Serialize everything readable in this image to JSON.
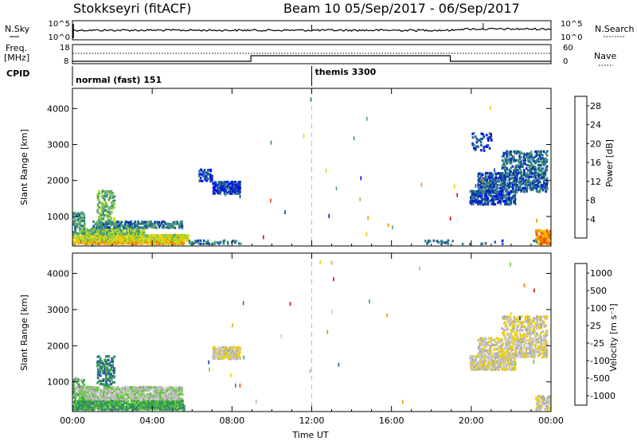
{
  "header": {
    "station": "Stokkseyri (fitACF)",
    "beam_and_dates": "Beam 10  05/Sep/2017 - 06/Sep/2017"
  },
  "labels": {
    "nsky": "N.Sky",
    "nsearch": "N.Search",
    "freq": "Freq.",
    "mhz": "[MHz]",
    "nave": "Nave",
    "cpid": "CPID",
    "time_axis": "Time UT",
    "slant_range": "Slant Range [km]",
    "power_label": "Power [dB]",
    "velocity_label": "Velocity [m s⁻¹]"
  },
  "noise_panel": {
    "left_ticks": [
      "10^5",
      "10^0"
    ],
    "right_ticks": [
      "10^5",
      "10^0"
    ]
  },
  "freq_panel": {
    "left_ticks": [
      "18",
      "8"
    ],
    "right_ticks": [
      "60",
      "0"
    ]
  },
  "cpid": {
    "entries": [
      {
        "start_hour": 0,
        "label": "normal (fast) 151"
      },
      {
        "start_hour": 12,
        "label": "themis 3300"
      }
    ]
  },
  "chart_data": [
    {
      "type": "heatmap",
      "name": "power",
      "x_ticks": [
        "00:00",
        "04:00",
        "08:00",
        "12:00",
        "16:00",
        "20:00",
        "00:00"
      ],
      "x_range_hours": [
        0,
        24
      ],
      "ylabel": "Slant Range [km]",
      "y_ticks": [
        1000,
        2000,
        3000,
        4000
      ],
      "ylim": [
        180,
        4560
      ],
      "colorbar": {
        "label": "Power [dB]",
        "ticks": [
          4,
          8,
          12,
          16,
          20,
          24,
          28
        ],
        "range": [
          0,
          30
        ],
        "colors": [
          "#0000ff",
          "#0c2fb0",
          "#1a5f9a",
          "#3a8a78",
          "#5aa870",
          "#8ccc3c",
          "#c8dd20",
          "#f0c800",
          "#f59400",
          "#f06a00",
          "#f03a00",
          "#e00000"
        ]
      },
      "regions": [
        {
          "t0": 0.0,
          "t1": 5.6,
          "r0": 200,
          "r1": 300,
          "level": 20,
          "density": 0.95
        },
        {
          "t0": 0.0,
          "t1": 5.8,
          "r0": 300,
          "r1": 480,
          "level": 16,
          "density": 0.9
        },
        {
          "t0": 0.3,
          "t1": 3.6,
          "r0": 480,
          "r1": 650,
          "level": 12,
          "density": 0.85
        },
        {
          "t0": 1.0,
          "t1": 5.5,
          "r0": 650,
          "r1": 850,
          "level": 8,
          "density": 0.7
        },
        {
          "t0": 1.2,
          "t1": 2.1,
          "r0": 850,
          "r1": 1700,
          "level": 12,
          "density": 0.45
        },
        {
          "t0": 0.0,
          "t1": 0.6,
          "r0": 480,
          "r1": 1100,
          "level": 10,
          "density": 0.45
        },
        {
          "t0": 5.8,
          "t1": 8.5,
          "r0": 200,
          "r1": 320,
          "level": 8,
          "density": 0.35
        },
        {
          "t0": 7.0,
          "t1": 8.4,
          "r0": 1600,
          "r1": 1950,
          "level": 4,
          "density": 0.75
        },
        {
          "t0": 6.3,
          "t1": 7.0,
          "r0": 1950,
          "r1": 2300,
          "level": 4,
          "density": 0.4
        },
        {
          "t0": 19.9,
          "t1": 22.2,
          "r0": 1300,
          "r1": 1700,
          "level": 5,
          "density": 0.7
        },
        {
          "t0": 20.3,
          "t1": 23.8,
          "r0": 1650,
          "r1": 2200,
          "level": 6,
          "density": 0.6
        },
        {
          "t0": 21.5,
          "t1": 23.8,
          "r0": 2200,
          "r1": 2800,
          "level": 7,
          "density": 0.5
        },
        {
          "t0": 20.0,
          "t1": 21.0,
          "r0": 2800,
          "r1": 3300,
          "level": 5,
          "density": 0.25
        },
        {
          "t0": 23.2,
          "t1": 23.95,
          "r0": 200,
          "r1": 600,
          "level": 22,
          "density": 0.7
        },
        {
          "t0": 17.5,
          "t1": 23.5,
          "r0": 200,
          "r1": 320,
          "level": 6,
          "density": 0.12
        }
      ]
    },
    {
      "type": "heatmap",
      "name": "velocity",
      "x_ticks": [
        "00:00",
        "04:00",
        "08:00",
        "12:00",
        "16:00",
        "20:00",
        "00:00"
      ],
      "x_range_hours": [
        0,
        24
      ],
      "xlabel": "Time UT",
      "ylabel": "Slant Range [km]",
      "y_ticks": [
        1000,
        2000,
        3000,
        4000
      ],
      "ylim": [
        180,
        4560
      ],
      "colorbar": {
        "label": "Velocity [m s⁻¹]",
        "ticks": [
          "1000",
          "500",
          "100",
          "25",
          "-25",
          "-100",
          "-500",
          "-1000"
        ],
        "colors": [
          "#1a3fbf",
          "#2a5aa0",
          "#2e8a6a",
          "#3aa04a",
          "#66c83a",
          "#b0b0b0",
          "#c8c8c8",
          "#f0d000",
          "#f5a000",
          "#f07000",
          "#f04000",
          "#e00000"
        ]
      },
      "regions": [
        {
          "t0": 0.0,
          "t1": 5.6,
          "r0": 200,
          "r1": 480,
          "level": 3,
          "density": 0.9
        },
        {
          "t0": 0.3,
          "t1": 5.5,
          "r0": 480,
          "r1": 850,
          "level": 5,
          "density": 0.8
        },
        {
          "t0": 1.2,
          "t1": 2.1,
          "r0": 850,
          "r1": 1700,
          "level": 2,
          "density": 0.45
        },
        {
          "t0": 0.0,
          "t1": 0.6,
          "r0": 480,
          "r1": 1100,
          "level": 4,
          "density": 0.4
        },
        {
          "t0": 7.0,
          "t1": 8.4,
          "r0": 1600,
          "r1": 1950,
          "level": 6,
          "density": 0.75
        },
        {
          "t0": 19.9,
          "t1": 22.2,
          "r0": 1300,
          "r1": 1700,
          "level": 6,
          "density": 0.7
        },
        {
          "t0": 20.3,
          "t1": 23.8,
          "r0": 1650,
          "r1": 2200,
          "level": 6,
          "density": 0.6
        },
        {
          "t0": 21.5,
          "t1": 23.8,
          "r0": 2200,
          "r1": 2800,
          "level": 6,
          "density": 0.5
        },
        {
          "t0": 23.2,
          "t1": 23.95,
          "r0": 200,
          "r1": 600,
          "level": 6,
          "density": 0.6
        }
      ]
    }
  ]
}
